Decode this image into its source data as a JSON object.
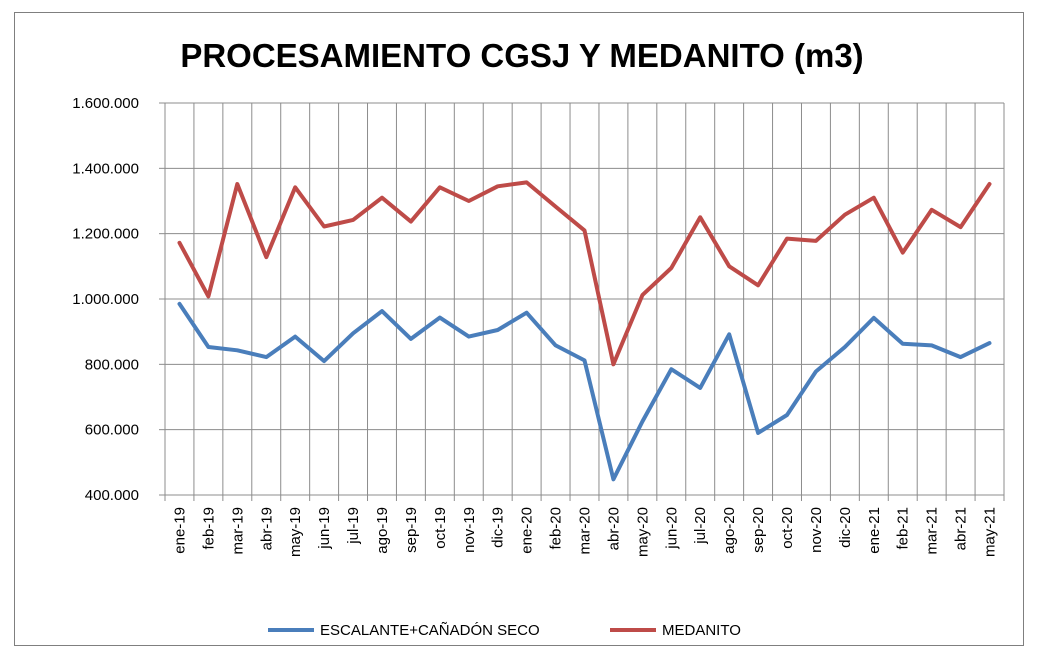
{
  "chart_data": {
    "type": "line",
    "title": "PROCESAMIENTO CGSJ Y MEDANITO (m3)",
    "xlabel": "",
    "ylabel": "",
    "ylim": [
      400000,
      1600000
    ],
    "ytick_values": [
      400000,
      600000,
      800000,
      1000000,
      1200000,
      1400000,
      1600000
    ],
    "ytick_labels": [
      "400.000",
      "600.000",
      "800.000",
      "1.000.000",
      "1.200.000",
      "1.400.000",
      "1.600.000"
    ],
    "grid": true,
    "legend_position": "bottom",
    "categories": [
      "ene-19",
      "feb-19",
      "mar-19",
      "abr-19",
      "may-19",
      "jun-19",
      "jul-19",
      "ago-19",
      "sep-19",
      "oct-19",
      "nov-19",
      "dic-19",
      "ene-20",
      "feb-20",
      "mar-20",
      "abr-20",
      "may-20",
      "jun-20",
      "jul-20",
      "ago-20",
      "sep-20",
      "oct-20",
      "nov-20",
      "dic-20",
      "ene-21",
      "feb-21",
      "mar-21",
      "abr-21",
      "may-21"
    ],
    "series": [
      {
        "name": "ESCALANTE+CAÑADÓN SECO",
        "color": "#4a7ebb",
        "values": [
          985000,
          853000,
          843000,
          822000,
          885000,
          810000,
          895000,
          963000,
          878000,
          943000,
          885000,
          905000,
          958000,
          858000,
          812000,
          448000,
          625000,
          785000,
          728000,
          892000,
          590000,
          645000,
          778000,
          853000,
          942000,
          863000,
          858000,
          822000,
          865000
        ]
      },
      {
        "name": "MEDANITO",
        "color": "#be4b48",
        "values": [
          1172000,
          1008000,
          1352000,
          1128000,
          1342000,
          1222000,
          1242000,
          1310000,
          1237000,
          1342000,
          1300000,
          1345000,
          1357000,
          1283000,
          1210000,
          800000,
          1012000,
          1095000,
          1250000,
          1100000,
          1042000,
          1185000,
          1178000,
          1258000,
          1310000,
          1142000,
          1273000,
          1220000,
          1352000
        ]
      }
    ]
  }
}
